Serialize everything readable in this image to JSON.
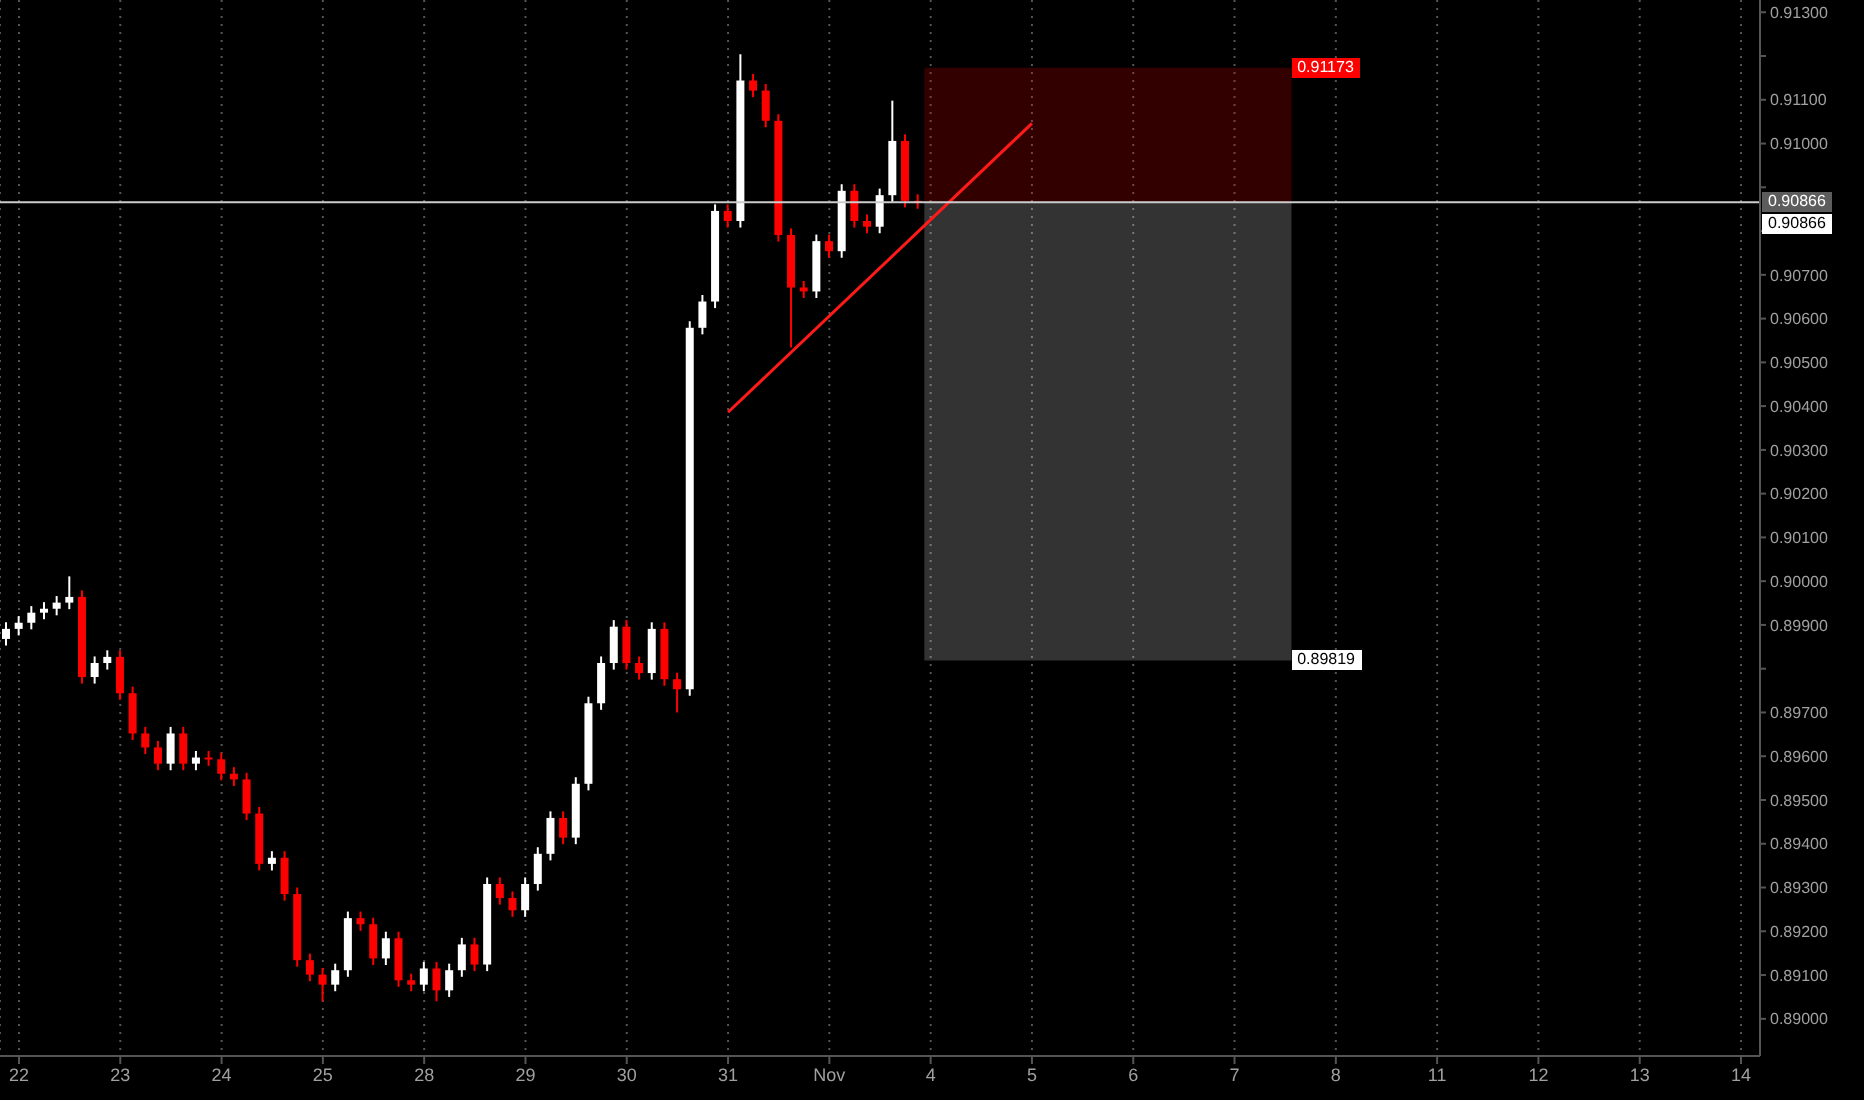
{
  "chart_data": {
    "type": "candlestick",
    "categories": [
      null,
      "22",
      null,
      null,
      null,
      null,
      null,
      null,
      null,
      "23",
      null,
      null,
      null,
      null,
      null,
      null,
      null,
      "24",
      null,
      null,
      null,
      null,
      null,
      null,
      null,
      "25",
      null,
      null,
      null,
      null,
      null,
      null,
      null,
      "28",
      null,
      null,
      null,
      null,
      null,
      null,
      null,
      "29",
      null,
      null,
      null,
      null,
      null,
      null,
      null,
      "30",
      null,
      null,
      null,
      null,
      null,
      null,
      null,
      "31",
      null,
      null,
      null,
      null,
      null,
      null,
      null,
      "Nov",
      null,
      null,
      null,
      null,
      null,
      null,
      null,
      "4",
      null,
      null,
      null,
      null,
      null,
      null,
      null,
      "5",
      null,
      null,
      null,
      null,
      null,
      null,
      null,
      "6",
      null,
      null,
      null,
      null,
      null,
      null,
      null,
      "7",
      null,
      null,
      null,
      null,
      null,
      null,
      null,
      "8",
      null,
      null,
      null,
      null,
      null,
      null,
      null,
      "11",
      null,
      null,
      null,
      null,
      null,
      null,
      null,
      "12",
      null,
      null,
      null,
      null,
      null,
      null,
      null,
      "13",
      null,
      null,
      null,
      null,
      null,
      null,
      null,
      "14",
      null
    ],
    "ylim": [
      0.88915,
      0.91328
    ],
    "yticks": [
      {
        "value": 0.89,
        "label": "0.89000"
      },
      {
        "value": 0.891,
        "label": "0.89100"
      },
      {
        "value": 0.892,
        "label": "0.89200"
      },
      {
        "value": 0.893,
        "label": "0.89300"
      },
      {
        "value": 0.894,
        "label": "0.89400"
      },
      {
        "value": 0.895,
        "label": "0.89500"
      },
      {
        "value": 0.896,
        "label": "0.89600"
      },
      {
        "value": 0.897,
        "label": "0.89700"
      },
      {
        "value": 0.898,
        "label": null
      },
      {
        "value": 0.899,
        "label": "0.89900"
      },
      {
        "value": 0.9,
        "label": "0.90000"
      },
      {
        "value": 0.901,
        "label": "0.90100"
      },
      {
        "value": 0.902,
        "label": "0.90200"
      },
      {
        "value": 0.903,
        "label": "0.90300"
      },
      {
        "value": 0.904,
        "label": "0.90400"
      },
      {
        "value": 0.905,
        "label": "0.90500"
      },
      {
        "value": 0.906,
        "label": "0.90600"
      },
      {
        "value": 0.907,
        "label": "0.90700"
      },
      {
        "value": 0.908,
        "label": null
      },
      {
        "value": 0.909,
        "label": null
      },
      {
        "value": 0.91,
        "label": "0.91000"
      },
      {
        "value": 0.911,
        "label": "0.91100"
      },
      {
        "value": 0.912,
        "label": null
      },
      {
        "value": 0.913,
        "label": "0.91300"
      }
    ],
    "grid": "x",
    "series": [
      {
        "ohlc": [
          [
            0.89868,
            0.89906,
            0.89853,
            0.89891
          ],
          [
            0.89891,
            0.8992,
            0.89876,
            0.89905
          ],
          [
            0.89905,
            0.89943,
            0.8989,
            0.89928
          ],
          [
            0.89928,
            0.89952,
            0.89913,
            0.89937
          ],
          [
            0.89937,
            0.89966,
            0.89922,
            0.89951
          ],
          [
            0.89951,
            0.90011,
            0.89936,
            0.89964
          ],
          [
            0.89964,
            0.89979,
            0.89766,
            0.89781
          ],
          [
            0.89781,
            0.89828,
            0.89766,
            0.89813
          ],
          [
            0.89813,
            0.89842,
            0.89798,
            0.89827
          ],
          [
            0.89827,
            0.89842,
            0.89729,
            0.89744
          ],
          [
            0.89744,
            0.89759,
            0.89637,
            0.89652
          ],
          [
            0.89652,
            0.89667,
            0.89605,
            0.8962
          ],
          [
            0.8962,
            0.89635,
            0.89568,
            0.89583
          ],
          [
            0.89583,
            0.89667,
            0.89568,
            0.89652
          ],
          [
            0.89652,
            0.89667,
            0.89568,
            0.89583
          ],
          [
            0.89583,
            0.89612,
            0.89568,
            0.89597
          ],
          [
            0.89597,
            0.89612,
            0.89578,
            0.89593
          ],
          [
            0.89593,
            0.89608,
            0.89545,
            0.8956
          ],
          [
            0.8956,
            0.89575,
            0.89532,
            0.89547
          ],
          [
            0.89547,
            0.89562,
            0.89454,
            0.89469
          ],
          [
            0.89469,
            0.89484,
            0.89339,
            0.89354
          ],
          [
            0.89354,
            0.89383,
            0.89339,
            0.89368
          ],
          [
            0.89368,
            0.89383,
            0.8927,
            0.89285
          ],
          [
            0.89285,
            0.893,
            0.89119,
            0.89134
          ],
          [
            0.89134,
            0.89149,
            0.89086,
            0.89101
          ],
          [
            0.89101,
            0.89116,
            0.8904,
            0.89078
          ],
          [
            0.89078,
            0.89126,
            0.89063,
            0.89111
          ],
          [
            0.89111,
            0.89245,
            0.89096,
            0.8923
          ],
          [
            0.8923,
            0.89245,
            0.89201,
            0.89216
          ],
          [
            0.89216,
            0.89231,
            0.89123,
            0.89138
          ],
          [
            0.89138,
            0.89199,
            0.89123,
            0.89184
          ],
          [
            0.89184,
            0.89199,
            0.89073,
            0.89088
          ],
          [
            0.89088,
            0.89103,
            0.89063,
            0.89078
          ],
          [
            0.89078,
            0.8913,
            0.89063,
            0.89115
          ],
          [
            0.89115,
            0.8913,
            0.8904,
            0.89065
          ],
          [
            0.89065,
            0.89126,
            0.8905,
            0.89111
          ],
          [
            0.89111,
            0.89185,
            0.89096,
            0.8917
          ],
          [
            0.8917,
            0.89185,
            0.89109,
            0.89124
          ],
          [
            0.89124,
            0.89323,
            0.89109,
            0.89308
          ],
          [
            0.89308,
            0.89323,
            0.89261,
            0.89276
          ],
          [
            0.89276,
            0.89291,
            0.89233,
            0.89248
          ],
          [
            0.89248,
            0.89323,
            0.89233,
            0.89308
          ],
          [
            0.89308,
            0.89392,
            0.89293,
            0.89377
          ],
          [
            0.89377,
            0.89474,
            0.89362,
            0.89459
          ],
          [
            0.89459,
            0.89474,
            0.89399,
            0.89414
          ],
          [
            0.89414,
            0.89552,
            0.89399,
            0.89537
          ],
          [
            0.89537,
            0.89736,
            0.89522,
            0.89721
          ],
          [
            0.89721,
            0.89828,
            0.89706,
            0.89813
          ],
          [
            0.89813,
            0.89911,
            0.89798,
            0.89896
          ],
          [
            0.89896,
            0.89911,
            0.89798,
            0.89813
          ],
          [
            0.89813,
            0.89828,
            0.89775,
            0.8979
          ],
          [
            0.8979,
            0.89906,
            0.89775,
            0.89891
          ],
          [
            0.89891,
            0.89906,
            0.89761,
            0.89776
          ],
          [
            0.89776,
            0.89791,
            0.897,
            0.89753
          ],
          [
            0.89753,
            0.90594,
            0.89738,
            0.90579
          ],
          [
            0.90579,
            0.90654,
            0.90564,
            0.90639
          ],
          [
            0.90639,
            0.90861,
            0.90624,
            0.90846
          ],
          [
            0.90846,
            0.90861,
            0.90808,
            0.90823
          ],
          [
            0.90823,
            0.91204,
            0.90808,
            0.91144
          ],
          [
            0.91144,
            0.91159,
            0.91106,
            0.91121
          ],
          [
            0.91121,
            0.91136,
            0.91037,
            0.91052
          ],
          [
            0.91052,
            0.91067,
            0.90776,
            0.90791
          ],
          [
            0.90791,
            0.90806,
            0.90534,
            0.90671
          ],
          [
            0.90671,
            0.90686,
            0.90647,
            0.90662
          ],
          [
            0.90662,
            0.90792,
            0.90647,
            0.90777
          ],
          [
            0.90777,
            0.90792,
            0.90739,
            0.90754
          ],
          [
            0.90754,
            0.90907,
            0.90739,
            0.90892
          ],
          [
            0.90892,
            0.90907,
            0.90808,
            0.90823
          ],
          [
            0.90823,
            0.90838,
            0.90795,
            0.9081
          ],
          [
            0.9081,
            0.90897,
            0.90795,
            0.90882
          ],
          [
            0.90882,
            0.91098,
            0.90867,
            0.91006
          ],
          [
            0.91006,
            0.91021,
            0.90854,
            0.90869
          ],
          [
            0.90869,
            0.90884,
            0.90851,
            0.90866
          ],
          null,
          null,
          null,
          null,
          null,
          null,
          null,
          null,
          null,
          null,
          null,
          null,
          null,
          null,
          null,
          null,
          null,
          null,
          null,
          null,
          null,
          null,
          null,
          null,
          null,
          null,
          null,
          null,
          null,
          null,
          null,
          null,
          null,
          null,
          null,
          null,
          null,
          null,
          null,
          null,
          null,
          null,
          null,
          null,
          null,
          null,
          null,
          null,
          null,
          null,
          null,
          null,
          null,
          null,
          null,
          null,
          null,
          null,
          null,
          null,
          null,
          null,
          null,
          null,
          null,
          null
        ],
        "colors": [
          "#ffffff",
          "#ffffff",
          "#ffffff",
          "#ffffff",
          "#ffffff",
          "#ffffff",
          "#ff0000",
          "#ffffff",
          "#ffffff",
          "#ff0000",
          "#ff0000",
          "#ff0000",
          "#ff0000",
          "#ffffff",
          "#ff0000",
          "#ffffff",
          "#ff0000",
          "#ff0000",
          "#ff0000",
          "#ff0000",
          "#ff0000",
          "#ffffff",
          "#ff0000",
          "#ff0000",
          "#ff0000",
          "#ff0000",
          "#ffffff",
          "#ffffff",
          "#ff0000",
          "#ff0000",
          "#ffffff",
          "#ff0000",
          "#ff0000",
          "#ffffff",
          "#ff0000",
          "#ffffff",
          "#ffffff",
          "#ff0000",
          "#ffffff",
          "#ff0000",
          "#ff0000",
          "#ffffff",
          "#ffffff",
          "#ffffff",
          "#ff0000",
          "#ffffff",
          "#ffffff",
          "#ffffff",
          "#ffffff",
          "#ff0000",
          "#ff0000",
          "#ffffff",
          "#ff0000",
          "#ff0000",
          "#ffffff",
          "#ffffff",
          "#ffffff",
          "#ff0000",
          "#ffffff",
          "#ff0000",
          "#ff0000",
          "#ff0000",
          "#ff0000",
          "#ff0000",
          "#ffffff",
          "#ff0000",
          "#ffffff",
          "#ff0000",
          "#ff0000",
          "#ffffff",
          "#ffffff",
          "#ff0000",
          "#ff0000",
          null,
          null,
          null,
          null,
          null,
          null,
          null,
          null,
          null,
          null,
          null,
          null,
          null,
          null,
          null,
          null,
          null,
          null,
          null,
          null,
          null,
          null,
          null,
          null,
          null,
          null,
          null,
          null,
          null,
          null,
          null,
          null,
          null,
          null,
          null,
          null,
          null,
          null,
          null,
          null,
          null,
          null,
          null,
          null,
          null,
          null,
          null,
          null,
          null,
          null,
          null,
          null,
          null,
          null,
          null,
          null,
          null,
          null,
          null,
          null,
          null,
          null,
          null,
          null,
          null,
          null
        ]
      },
      {
        "type": "line",
        "color": "#ff1a1a",
        "values": [
          null,
          null,
          null,
          null,
          null,
          null,
          null,
          null,
          null,
          null,
          null,
          null,
          null,
          null,
          null,
          null,
          null,
          null,
          null,
          null,
          null,
          null,
          null,
          null,
          null,
          null,
          null,
          null,
          null,
          null,
          null,
          null,
          null,
          null,
          null,
          null,
          null,
          null,
          null,
          null,
          null,
          null,
          null,
          null,
          null,
          null,
          null,
          null,
          null,
          null,
          null,
          null,
          null,
          null,
          null,
          null,
          null,
          0.90386,
          null,
          null,
          null,
          null,
          null,
          null,
          null,
          null,
          null,
          null,
          null,
          null,
          null,
          null,
          null,
          null,
          null,
          null,
          null,
          null,
          null,
          null,
          null,
          0.91046,
          null,
          null,
          null,
          null,
          null,
          null,
          null,
          null,
          null,
          null,
          null,
          null,
          null,
          null,
          null,
          null,
          null,
          null,
          null,
          null,
          null,
          null,
          null,
          null,
          null,
          null,
          null,
          null,
          null,
          null,
          null,
          null,
          null,
          null,
          null,
          null,
          null,
          null,
          null,
          null,
          null,
          null,
          null,
          null,
          null,
          null,
          null,
          null,
          null,
          null,
          null,
          null,
          null,
          null,
          null,
          null,
          null
        ]
      }
    ],
    "ref_lines": [
      {
        "axis": "y",
        "value": 0.90866,
        "label": "0.90866",
        "color": "#cccccc"
      }
    ],
    "bands": [
      {
        "axis": "y",
        "from": 0.90866,
        "to": 0.91173,
        "label": "0.91173",
        "color": "#ff0000"
      },
      {
        "axis": "y",
        "from": 0.89819,
        "to": 0.90866,
        "label": "0.89819",
        "color": "#ffffff"
      }
    ],
    "annotations": [
      "0.90866"
    ]
  }
}
